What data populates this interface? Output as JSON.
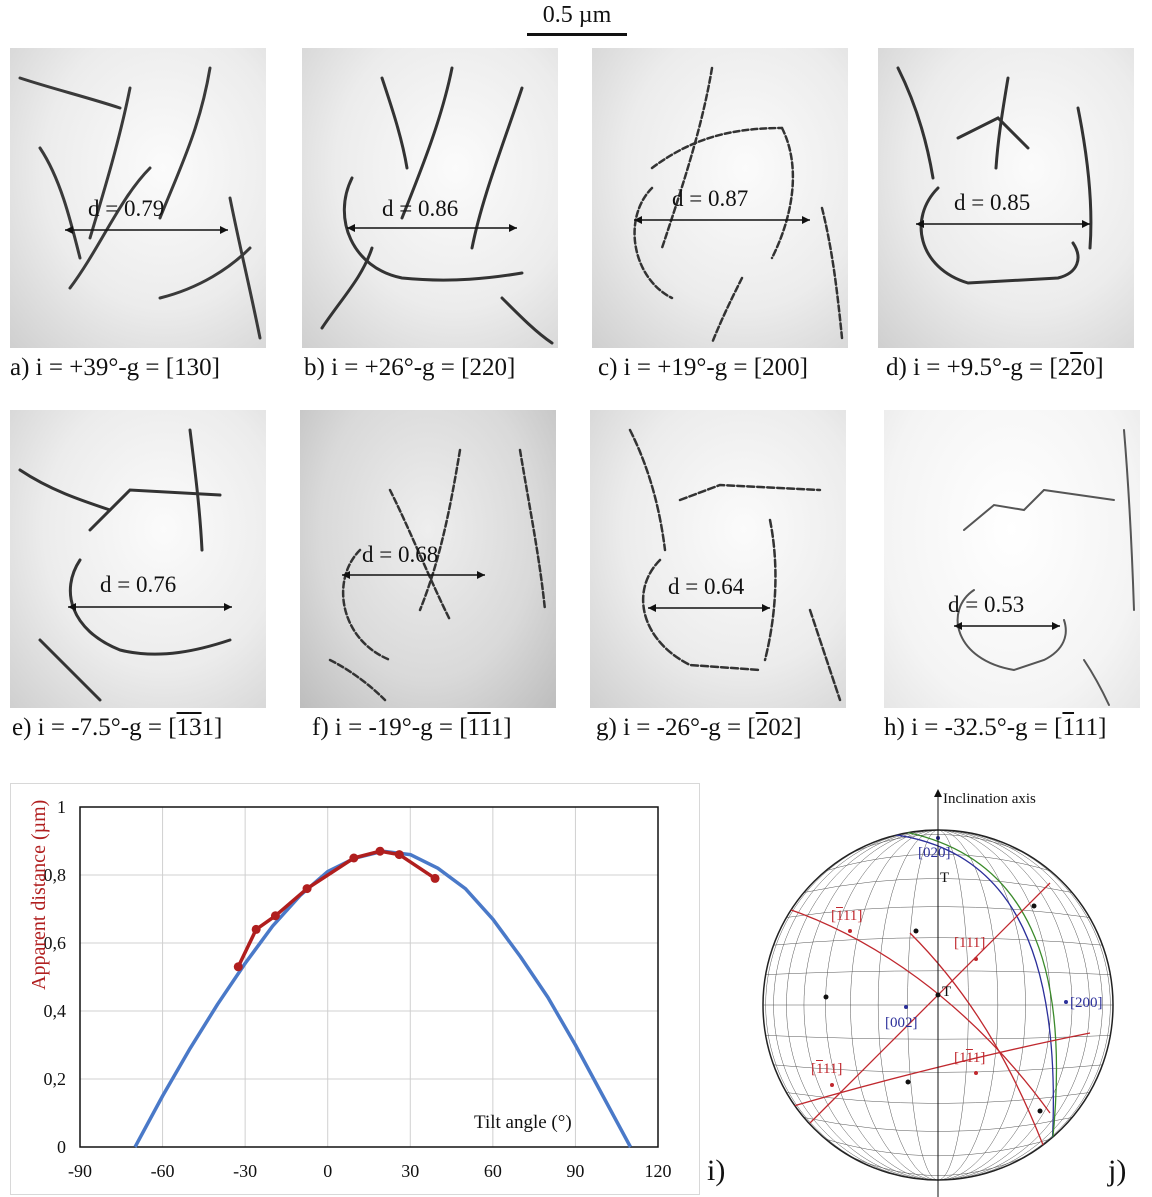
{
  "scalebar": {
    "label": "0.5 µm"
  },
  "panels": [
    {
      "caption": "a) i = +39°-g = [130]",
      "d_label": "d = 0.79"
    },
    {
      "caption": "b) i = +26°-g = [220]",
      "d_label": "d = 0.86"
    },
    {
      "caption": "c) i = +19°-g = [200]",
      "d_label": "d = 0.87"
    },
    {
      "caption_pre": "d) i = +9.5°-g = [2",
      "caption_bar": "2",
      "caption_post": "0]",
      "d_label": "d = 0.85"
    },
    {
      "caption_pre": "e) i = -7.5°-g = [",
      "caption_bar1": "1",
      "caption_bar2": "3",
      "caption_post": "1]",
      "d_label": "d = 0.76"
    },
    {
      "caption_pre": "f) i = -19°-g = [",
      "caption_bar1": "1",
      "caption_bar2": "1",
      "caption_post": "1]",
      "d_label": "d = 0.68"
    },
    {
      "caption_pre": "g) i = -26°-g = [",
      "caption_bar": "2",
      "caption_post": "02]",
      "d_label": "d = 0.64"
    },
    {
      "caption_pre": "h) i = -32.5°-g = [",
      "caption_bar": "1",
      "caption_post": "11]",
      "d_label": "d = 0.53"
    }
  ],
  "chart_data": {
    "type": "line",
    "xlabel": "Tilt angle (°)",
    "ylabel": "Apparent distance (µm)",
    "xlim": [
      -90,
      120
    ],
    "ylim": [
      0,
      1
    ],
    "xticks": [
      "-90",
      "-60",
      "-30",
      "0",
      "30",
      "60",
      "90",
      "120"
    ],
    "yticks": [
      "0",
      "0,2",
      "0,4",
      "0,6",
      "0,8",
      "1"
    ],
    "grid": true,
    "series": [
      {
        "color": "#4a79c8",
        "x": [
          -70,
          -60,
          -50,
          -40,
          -30,
          -20,
          -10,
          0,
          10,
          20,
          30,
          40,
          50,
          60,
          70,
          80,
          90,
          100,
          110
        ],
        "y": [
          0,
          0.15,
          0.29,
          0.42,
          0.54,
          0.65,
          0.74,
          0.81,
          0.85,
          0.87,
          0.86,
          0.82,
          0.76,
          0.67,
          0.56,
          0.44,
          0.3,
          0.15,
          0
        ]
      },
      {
        "color": "#b01e1e",
        "x": [
          -32.5,
          -26,
          -19,
          -7.5,
          9.5,
          19,
          26,
          39
        ],
        "y": [
          0.53,
          0.64,
          0.68,
          0.76,
          0.85,
          0.87,
          0.86,
          0.79
        ]
      }
    ],
    "panel_label": "i)"
  },
  "stereo": {
    "axis_label": "Inclination axis",
    "poles_blue": [
      "[020]",
      "[200]",
      "[002]"
    ],
    "pole_red_1": "[111]",
    "pole_red_2_pre": "[",
    "pole_red_2_bar": "1",
    "pole_red_2_post": "11]",
    "pole_red_3_pre": "[",
    "pole_red_3_bar": "1",
    "pole_red_3_post": "11]",
    "pole_red_4_pre": "[1",
    "pole_red_4_bar": "1",
    "pole_red_4_post": "1]",
    "t_label": "T",
    "panel_label": "j)",
    "colors": {
      "blue": "#2b2f9a",
      "red": "#c0282e",
      "green": "#3a8a2a"
    }
  }
}
